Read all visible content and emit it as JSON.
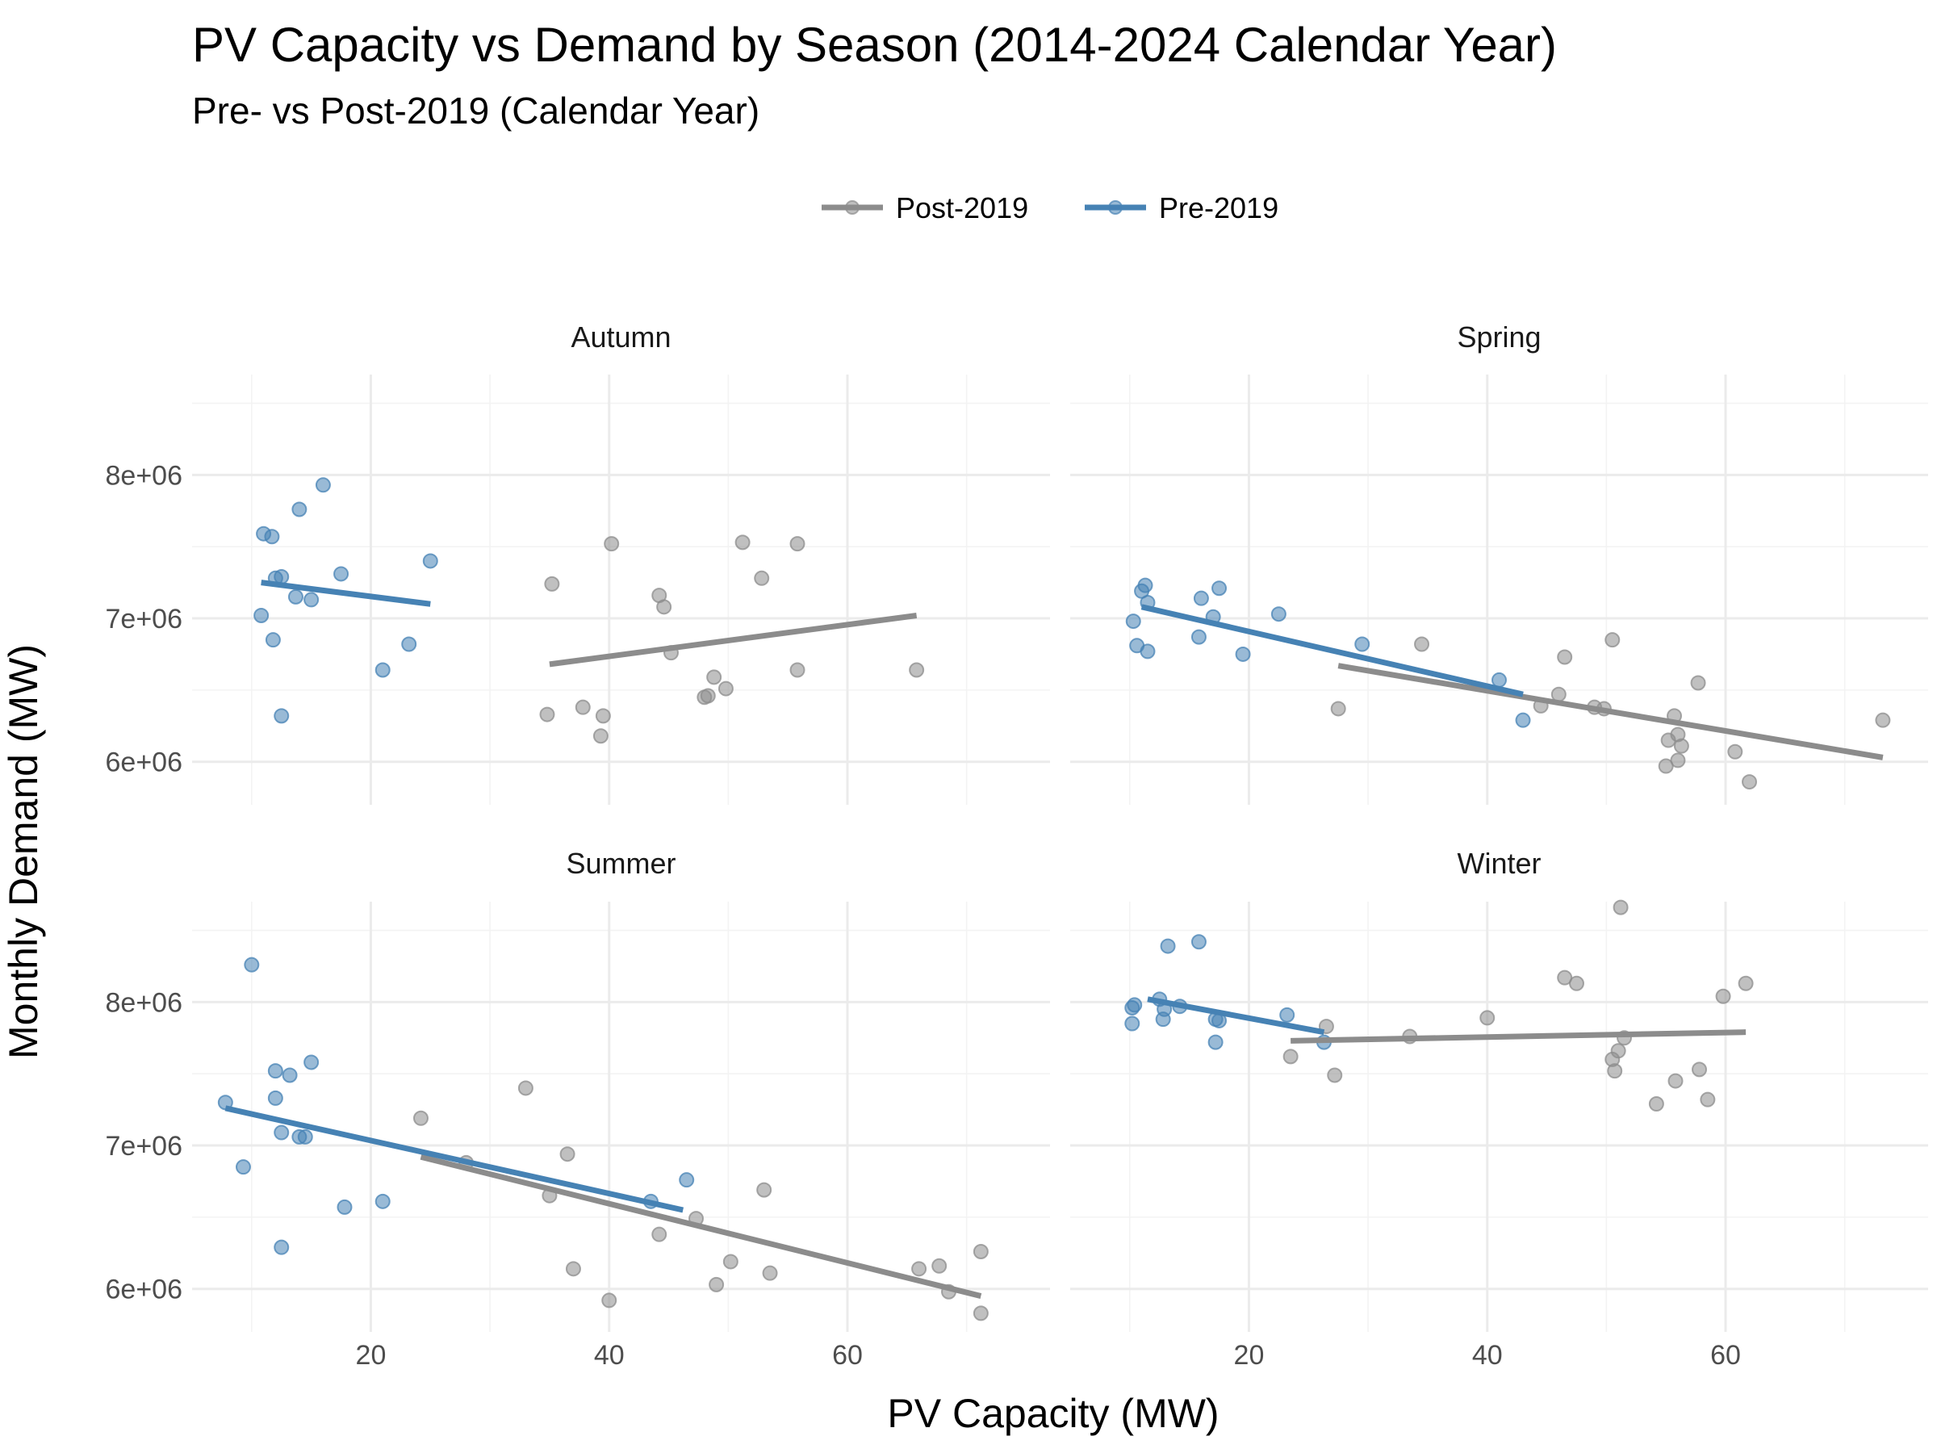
{
  "chart_data": {
    "type": "scatter",
    "title": "PV Capacity vs Demand by Season (2014-2024 Calendar Year)",
    "subtitle": "Pre- vs Post-2019 (Calendar Year)",
    "xlabel": "PV Capacity (MW)",
    "ylabel": "Monthly Demand (MW)",
    "xlim": [
      5,
      77
    ],
    "ylim": [
      5700000,
      8700000
    ],
    "x_ticks": [
      20,
      40,
      60
    ],
    "x_tick_labels": [
      "20",
      "40",
      "60"
    ],
    "y_ticks": [
      6000000,
      7000000,
      8000000
    ],
    "y_tick_labels": [
      "6e+06",
      "7e+06",
      "8e+06"
    ],
    "grid": true,
    "legend": {
      "position": "top",
      "entries": [
        {
          "name": "Post-2019",
          "color": "#8c8c8c"
        },
        {
          "name": "Pre-2019",
          "color": "#4682b4"
        }
      ]
    },
    "panels": [
      {
        "name": "Autumn",
        "series": [
          {
            "name": "Pre-2019",
            "points": [
              [
                11.0,
                7590000
              ],
              [
                11.7,
                7570000
              ],
              [
                14.0,
                7760000
              ],
              [
                16.0,
                7930000
              ],
              [
                12.0,
                7280000
              ],
              [
                12.5,
                7290000
              ],
              [
                17.5,
                7310000
              ],
              [
                25.0,
                7400000
              ],
              [
                10.8,
                7020000
              ],
              [
                13.7,
                7150000
              ],
              [
                15.0,
                7130000
              ],
              [
                11.8,
                6850000
              ],
              [
                23.2,
                6820000
              ],
              [
                21.0,
                6640000
              ],
              [
                12.5,
                6320000
              ]
            ],
            "trend": [
              [
                10.8,
                7250000
              ],
              [
                25.0,
                7100000
              ]
            ]
          },
          {
            "name": "Post-2019",
            "points": [
              [
                34.8,
                6330000
              ],
              [
                35.2,
                7240000
              ],
              [
                37.8,
                6380000
              ],
              [
                39.5,
                6320000
              ],
              [
                39.3,
                6180000
              ],
              [
                40.2,
                7520000
              ],
              [
                44.2,
                7160000
              ],
              [
                44.6,
                7080000
              ],
              [
                45.2,
                6760000
              ],
              [
                48.0,
                6450000
              ],
              [
                48.3,
                6460000
              ],
              [
                48.8,
                6590000
              ],
              [
                49.8,
                6510000
              ],
              [
                51.2,
                7530000
              ],
              [
                52.8,
                7280000
              ],
              [
                55.8,
                7520000
              ],
              [
                55.8,
                6640000
              ],
              [
                65.8,
                6640000
              ]
            ],
            "trend": [
              [
                35.0,
                6680000
              ],
              [
                65.8,
                7020000
              ]
            ]
          }
        ]
      },
      {
        "name": "Spring",
        "series": [
          {
            "name": "Pre-2019",
            "points": [
              [
                11.3,
                7230000
              ],
              [
                11.0,
                7190000
              ],
              [
                11.5,
                7110000
              ],
              [
                10.3,
                6980000
              ],
              [
                10.6,
                6810000
              ],
              [
                11.5,
                6770000
              ],
              [
                16.0,
                7140000
              ],
              [
                17.5,
                7210000
              ],
              [
                17.0,
                7010000
              ],
              [
                15.8,
                6870000
              ],
              [
                19.5,
                6750000
              ],
              [
                22.5,
                7030000
              ],
              [
                29.5,
                6820000
              ],
              [
                41.0,
                6570000
              ],
              [
                43.0,
                6290000
              ]
            ],
            "trend": [
              [
                11.0,
                7080000
              ],
              [
                43.0,
                6470000
              ]
            ]
          },
          {
            "name": "Post-2019",
            "points": [
              [
                27.5,
                6370000
              ],
              [
                34.5,
                6820000
              ],
              [
                44.5,
                6390000
              ],
              [
                46.0,
                6470000
              ],
              [
                46.5,
                6730000
              ],
              [
                49.0,
                6380000
              ],
              [
                49.8,
                6370000
              ],
              [
                50.5,
                6850000
              ],
              [
                55.0,
                5970000
              ],
              [
                55.2,
                6150000
              ],
              [
                55.7,
                6320000
              ],
              [
                56.0,
                6190000
              ],
              [
                56.0,
                6010000
              ],
              [
                56.3,
                6110000
              ],
              [
                57.7,
                6550000
              ],
              [
                60.8,
                6070000
              ],
              [
                62.0,
                5860000
              ],
              [
                73.2,
                6290000
              ]
            ],
            "trend": [
              [
                27.5,
                6670000
              ],
              [
                73.2,
                6030000
              ]
            ]
          }
        ]
      },
      {
        "name": "Summer",
        "series": [
          {
            "name": "Pre-2019",
            "points": [
              [
                10.0,
                8260000
              ],
              [
                7.8,
                7300000
              ],
              [
                9.3,
                6850000
              ],
              [
                12.0,
                7520000
              ],
              [
                12.0,
                7330000
              ],
              [
                13.2,
                7490000
              ],
              [
                15.0,
                7580000
              ],
              [
                12.5,
                7090000
              ],
              [
                14.0,
                7060000
              ],
              [
                14.5,
                7060000
              ],
              [
                17.8,
                6570000
              ],
              [
                21.0,
                6610000
              ],
              [
                12.5,
                6290000
              ],
              [
                43.5,
                6610000
              ],
              [
                46.5,
                6760000
              ]
            ],
            "trend": [
              [
                7.8,
                7260000
              ],
              [
                46.2,
                6550000
              ]
            ]
          },
          {
            "name": "Post-2019",
            "points": [
              [
                24.2,
                7190000
              ],
              [
                28.0,
                6880000
              ],
              [
                33.0,
                7400000
              ],
              [
                35.0,
                6650000
              ],
              [
                36.5,
                6940000
              ],
              [
                37.0,
                6140000
              ],
              [
                40.0,
                5920000
              ],
              [
                44.2,
                6380000
              ],
              [
                47.3,
                6490000
              ],
              [
                49.0,
                6030000
              ],
              [
                50.2,
                6190000
              ],
              [
                53.0,
                6690000
              ],
              [
                53.5,
                6110000
              ],
              [
                66.0,
                6140000
              ],
              [
                67.7,
                6160000
              ],
              [
                68.5,
                5980000
              ],
              [
                71.2,
                6260000
              ],
              [
                71.2,
                5830000
              ]
            ],
            "trend": [
              [
                24.2,
                6920000
              ],
              [
                71.2,
                5950000
              ]
            ]
          }
        ]
      },
      {
        "name": "Winter",
        "series": [
          {
            "name": "Pre-2019",
            "points": [
              [
                13.2,
                8390000
              ],
              [
                15.8,
                8420000
              ],
              [
                10.2,
                7960000
              ],
              [
                10.4,
                7980000
              ],
              [
                12.5,
                8020000
              ],
              [
                12.9,
                7950000
              ],
              [
                14.2,
                7970000
              ],
              [
                10.2,
                7850000
              ],
              [
                12.8,
                7880000
              ],
              [
                17.2,
                7880000
              ],
              [
                17.5,
                7870000
              ],
              [
                17.2,
                7720000
              ],
              [
                23.2,
                7910000
              ],
              [
                26.3,
                7720000
              ]
            ],
            "trend": [
              [
                11.5,
                8020000
              ],
              [
                26.3,
                7790000
              ]
            ]
          },
          {
            "name": "Post-2019",
            "points": [
              [
                23.5,
                7620000
              ],
              [
                26.5,
                7830000
              ],
              [
                27.2,
                7490000
              ],
              [
                33.5,
                7760000
              ],
              [
                40.0,
                7890000
              ],
              [
                46.5,
                8170000
              ],
              [
                47.5,
                8130000
              ],
              [
                50.5,
                7600000
              ],
              [
                50.7,
                7520000
              ],
              [
                51.0,
                7660000
              ],
              [
                51.5,
                7750000
              ],
              [
                51.2,
                8660000
              ],
              [
                54.2,
                7290000
              ],
              [
                55.8,
                7450000
              ],
              [
                57.8,
                7530000
              ],
              [
                58.5,
                7320000
              ],
              [
                59.8,
                8040000
              ],
              [
                61.7,
                8130000
              ]
            ],
            "trend": [
              [
                23.5,
                7730000
              ],
              [
                61.7,
                7790000
              ]
            ]
          }
        ]
      }
    ]
  }
}
